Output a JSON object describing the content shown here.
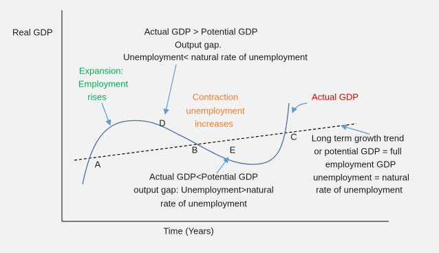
{
  "axes": {
    "y_label": "Real GDP",
    "x_label": "Time (Years)"
  },
  "annotations": {
    "peak": [
      "Actual GDP > Potential GDP",
      "Output gap.",
      "Unemployment< natural rate of unemployment"
    ],
    "expansion": [
      "Expansion:",
      "Employment",
      "rises"
    ],
    "contraction": [
      "Contraction",
      "unemployment",
      "increases"
    ],
    "actual": [
      "Actual GDP"
    ],
    "trend": [
      "Long term growth trend",
      "or potential GDP = full",
      "employment GDP",
      "unemployment = natural",
      "rate of unemployment"
    ],
    "trough": [
      "Actual GDP<Potential GDP",
      "output gap: Unemployment>natural",
      "rate of unemployment"
    ]
  },
  "points": [
    "A",
    "D",
    "B",
    "E",
    "C"
  ]
}
